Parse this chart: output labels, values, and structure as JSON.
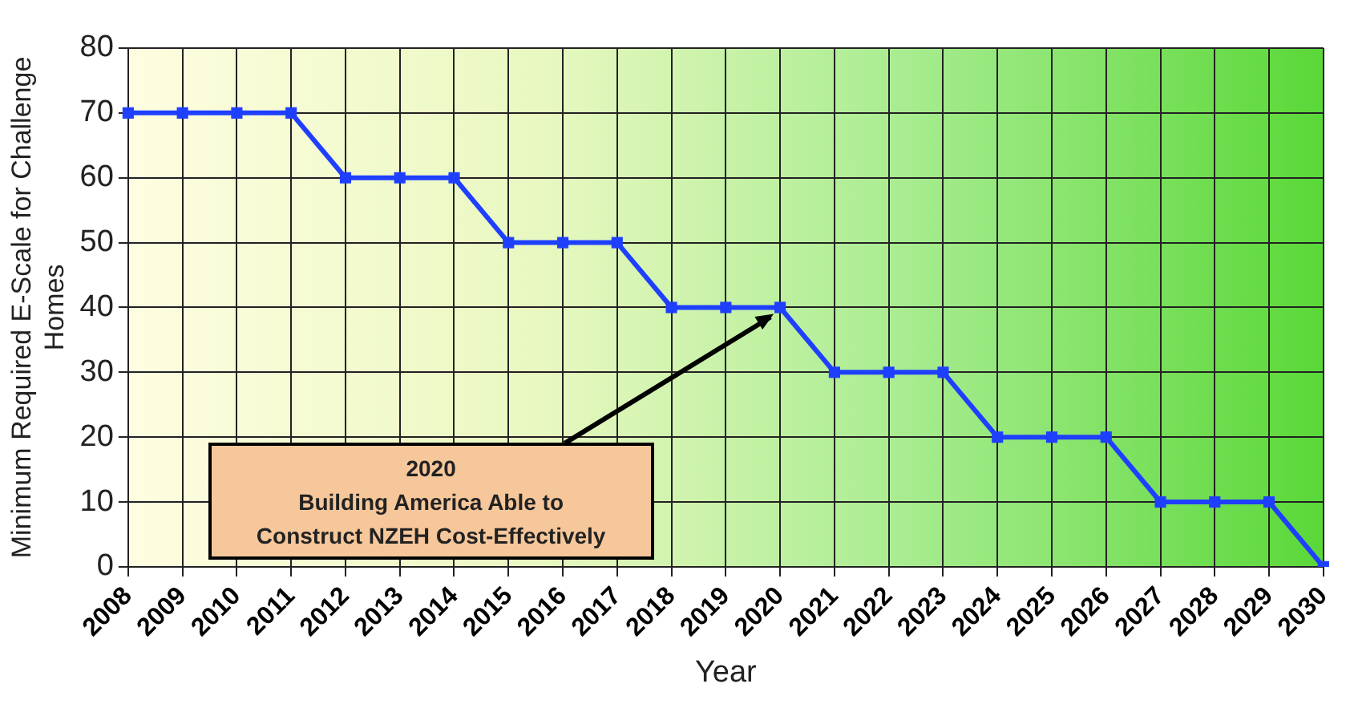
{
  "chart_data": {
    "type": "line",
    "xlabel": "Year",
    "ylabel": "Minimum Required E-Scale for Challenge Homes",
    "categories": [
      "2008",
      "2009",
      "2010",
      "2011",
      "2012",
      "2013",
      "2014",
      "2015",
      "2016",
      "2017",
      "2018",
      "2019",
      "2020",
      "2021",
      "2022",
      "2023",
      "2024",
      "2025",
      "2026",
      "2027",
      "2028",
      "2029",
      "2030"
    ],
    "series": [
      {
        "color": "#1f3fff",
        "values": [
          70,
          70,
          70,
          70,
          60,
          60,
          60,
          50,
          50,
          50,
          40,
          40,
          40,
          30,
          30,
          30,
          20,
          20,
          20,
          10,
          10,
          10,
          0
        ]
      }
    ],
    "ylim": [
      0,
      80
    ],
    "yticks": [
      0,
      10,
      20,
      30,
      40,
      50,
      60,
      70,
      80
    ],
    "grid": true,
    "legend": false,
    "marker": "square",
    "line_style": "solid",
    "annotations": [
      {
        "text": "2020\nBuilding America Able to\nConstruct NZEH Cost-Effectively",
        "x": "2020",
        "y": 40
      }
    ]
  }
}
